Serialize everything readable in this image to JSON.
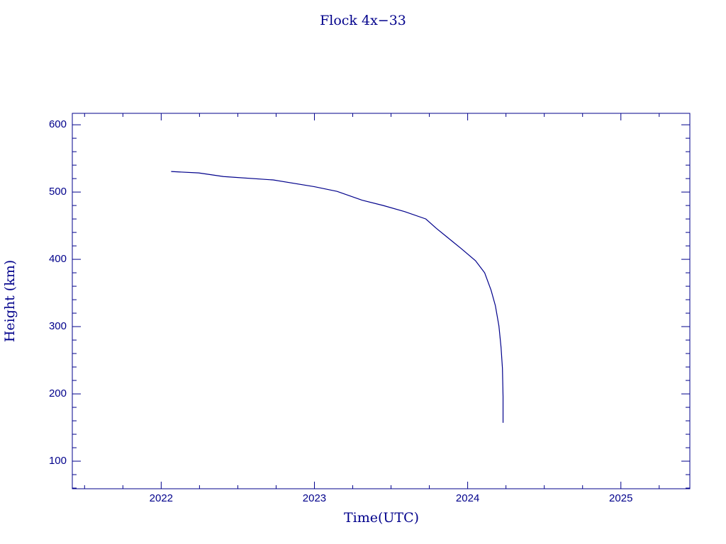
{
  "chart_data": {
    "type": "line",
    "title": "Flock 4x−33",
    "x_label": "Time(UTC)",
    "y_label": "Height (km)",
    "x": [
      2022.065,
      2022.245,
      2022.407,
      2022.731,
      2023.0,
      2023.148,
      2023.31,
      2023.449,
      2023.588,
      2023.727,
      2023.796,
      2023.866,
      2023.958,
      2024.051,
      2024.111,
      2024.153,
      2024.181,
      2024.204,
      2024.218,
      2024.227,
      2024.231,
      2024.231
    ],
    "values": [
      530.5,
      528.4,
      523,
      518,
      508,
      501,
      488,
      480,
      471,
      460,
      446,
      433,
      416,
      398,
      380,
      354,
      331,
      301,
      269,
      238,
      196,
      157
    ],
    "color": "#00008b",
    "xlim": [
      2021.42,
      2025.45
    ],
    "xticks": [
      2022,
      2023,
      2024,
      2025
    ],
    "ylim": [
      59,
      617
    ],
    "yticks": [
      100,
      200,
      300,
      400,
      500,
      600
    ]
  }
}
